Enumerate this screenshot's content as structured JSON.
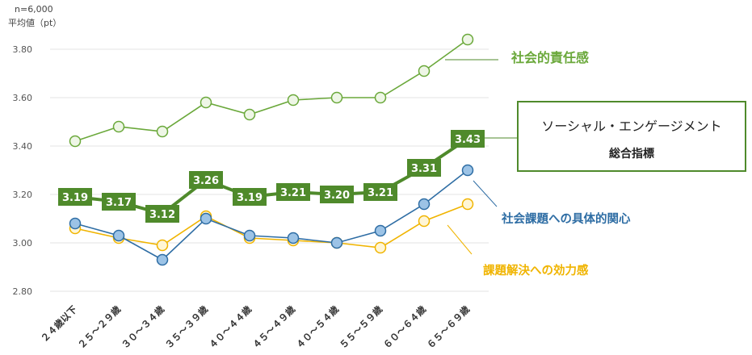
{
  "header": {
    "n_label": "n=6,000",
    "unit_label": "平均値（pt）"
  },
  "colors": {
    "social_responsibility": "#6aa83a",
    "engagement": "#4f8a2b",
    "concern": "#2e6da4",
    "concern_fill": "#9cc3e6",
    "efficacy": "#f0b400",
    "efficacy_fill": "#fff6d6",
    "grid": "#e3e3e3",
    "axis_text": "#555555"
  },
  "chart_data": {
    "type": "line",
    "categories": [
      "２４歳以下",
      "２５～２９歳",
      "３０～３４歳",
      "３５～３９歳",
      "４０～４４歳",
      "４５～４９歳",
      "４０～５４歳",
      "５５～５９歳",
      "６０～６４歳",
      "６５～６９歳"
    ],
    "ylim": [
      2.8,
      3.85
    ],
    "yticks": [
      "2.80",
      "3.00",
      "3.20",
      "3.40",
      "3.60",
      "3.80"
    ],
    "grid": true,
    "series": [
      {
        "name": "社会的責任感",
        "key": "social_responsibility",
        "values": [
          3.42,
          3.48,
          3.46,
          3.58,
          3.53,
          3.59,
          3.6,
          3.6,
          3.71,
          3.84
        ]
      },
      {
        "name": "ソーシャル・エンゲージメント総合指標",
        "key": "engagement",
        "values": [
          3.19,
          3.17,
          3.12,
          3.26,
          3.19,
          3.21,
          3.2,
          3.21,
          3.31,
          3.43
        ],
        "labels": [
          "3.19",
          "3.17",
          "3.12",
          "3.26",
          "3.19",
          "3.21",
          "3.20",
          "3.21",
          "3.31",
          "3.43"
        ]
      },
      {
        "name": "社会課題への具体的関心",
        "key": "concern",
        "values": [
          3.08,
          3.03,
          2.93,
          3.1,
          3.03,
          3.02,
          3.0,
          3.05,
          3.16,
          3.3
        ]
      },
      {
        "name": "課題解決への効力感",
        "key": "efficacy",
        "values": [
          3.06,
          3.02,
          2.99,
          3.11,
          3.02,
          3.01,
          3.0,
          2.98,
          3.09,
          3.16
        ]
      }
    ],
    "legend": {
      "social_responsibility": "社会的責任感",
      "engagement_line1": "ソーシャル・エンゲージメント",
      "engagement_line2": "総合指標",
      "concern": "社会課題への具体的関心",
      "efficacy": "課題解決への効力感"
    }
  }
}
